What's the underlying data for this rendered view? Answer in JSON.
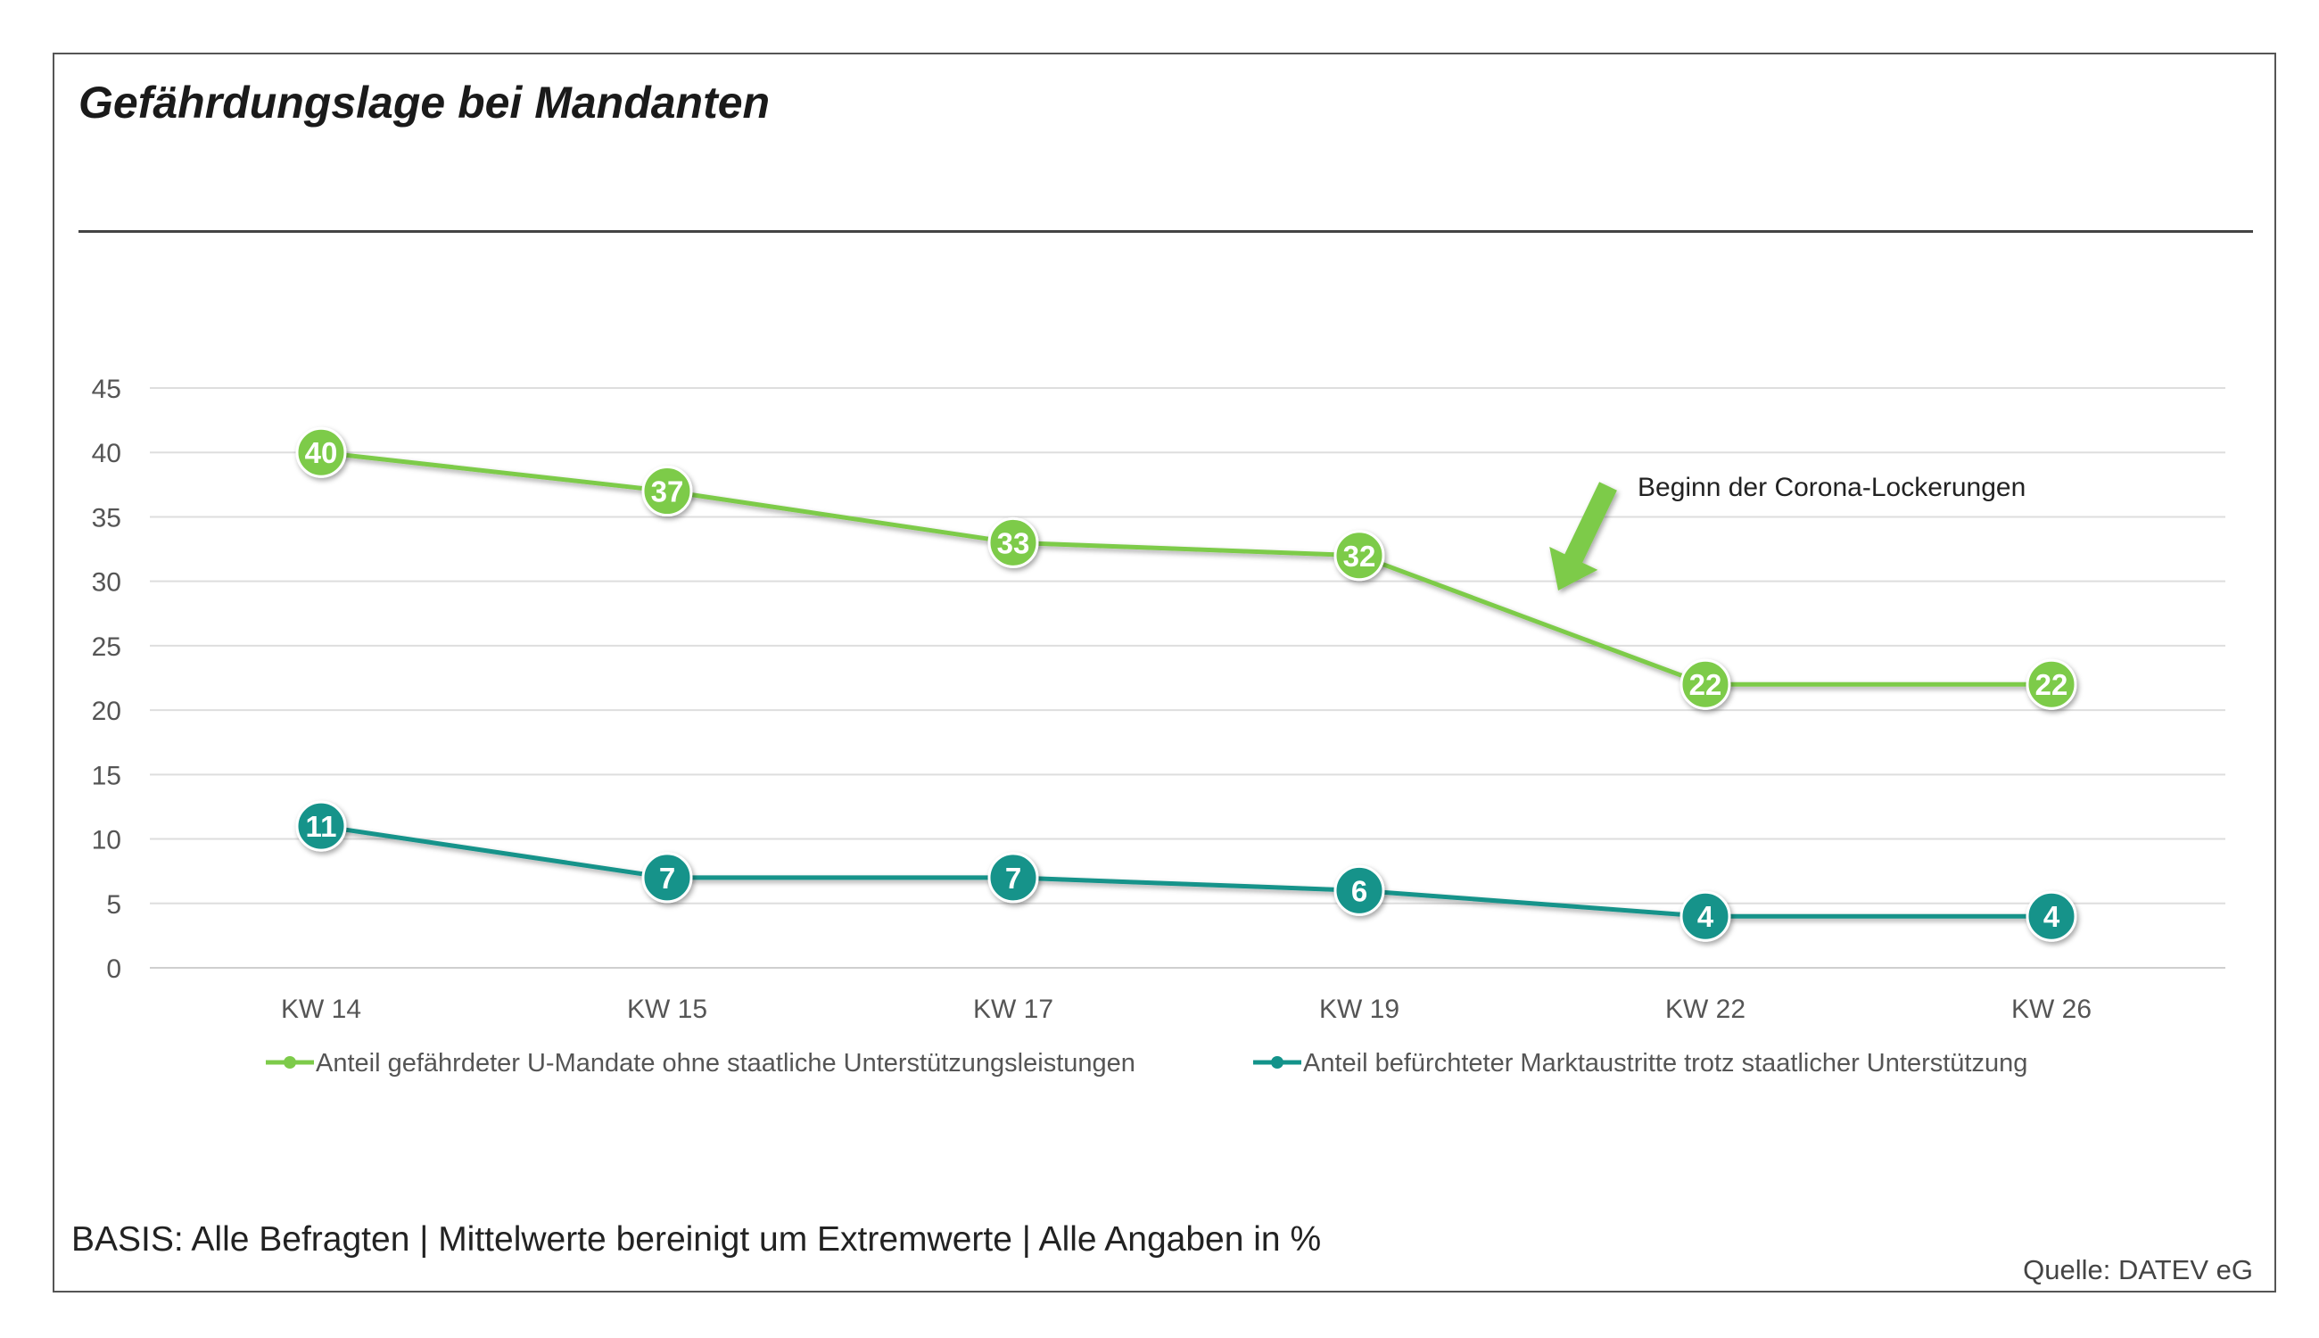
{
  "title": "Gefährdungslage bei Mandanten",
  "footnote": "BASIS: Alle Befragten | Mittelwerte bereinigt um Extremwerte | Alle Angaben in %",
  "source": "Quelle: DATEV eG",
  "chart_data": {
    "type": "line",
    "title": "Gefährdungslage bei Mandanten",
    "categories": [
      "KW 14",
      "KW 15",
      "KW 17",
      "KW 19",
      "KW 22",
      "KW 26"
    ],
    "ylim": [
      0,
      45
    ],
    "yticks": [
      0,
      5,
      10,
      15,
      20,
      25,
      30,
      35,
      40,
      45
    ],
    "grid": true,
    "legend_position": "bottom",
    "series": [
      {
        "name": "Anteil gefährdeter U-Mandate ohne staatliche Unterstützungsleistungen",
        "values": [
          40,
          37,
          33,
          32,
          22,
          22
        ],
        "color": "#7dcb4a"
      },
      {
        "name": "Anteil befürchteter Marktaustritte trotz staatlicher Unterstützung",
        "values": [
          11,
          7,
          7,
          6,
          4,
          4
        ],
        "color": "#13938a"
      }
    ],
    "annotation": {
      "text": "Beginn der Corona-Lockerungen",
      "color": "#7dcb4a"
    }
  }
}
